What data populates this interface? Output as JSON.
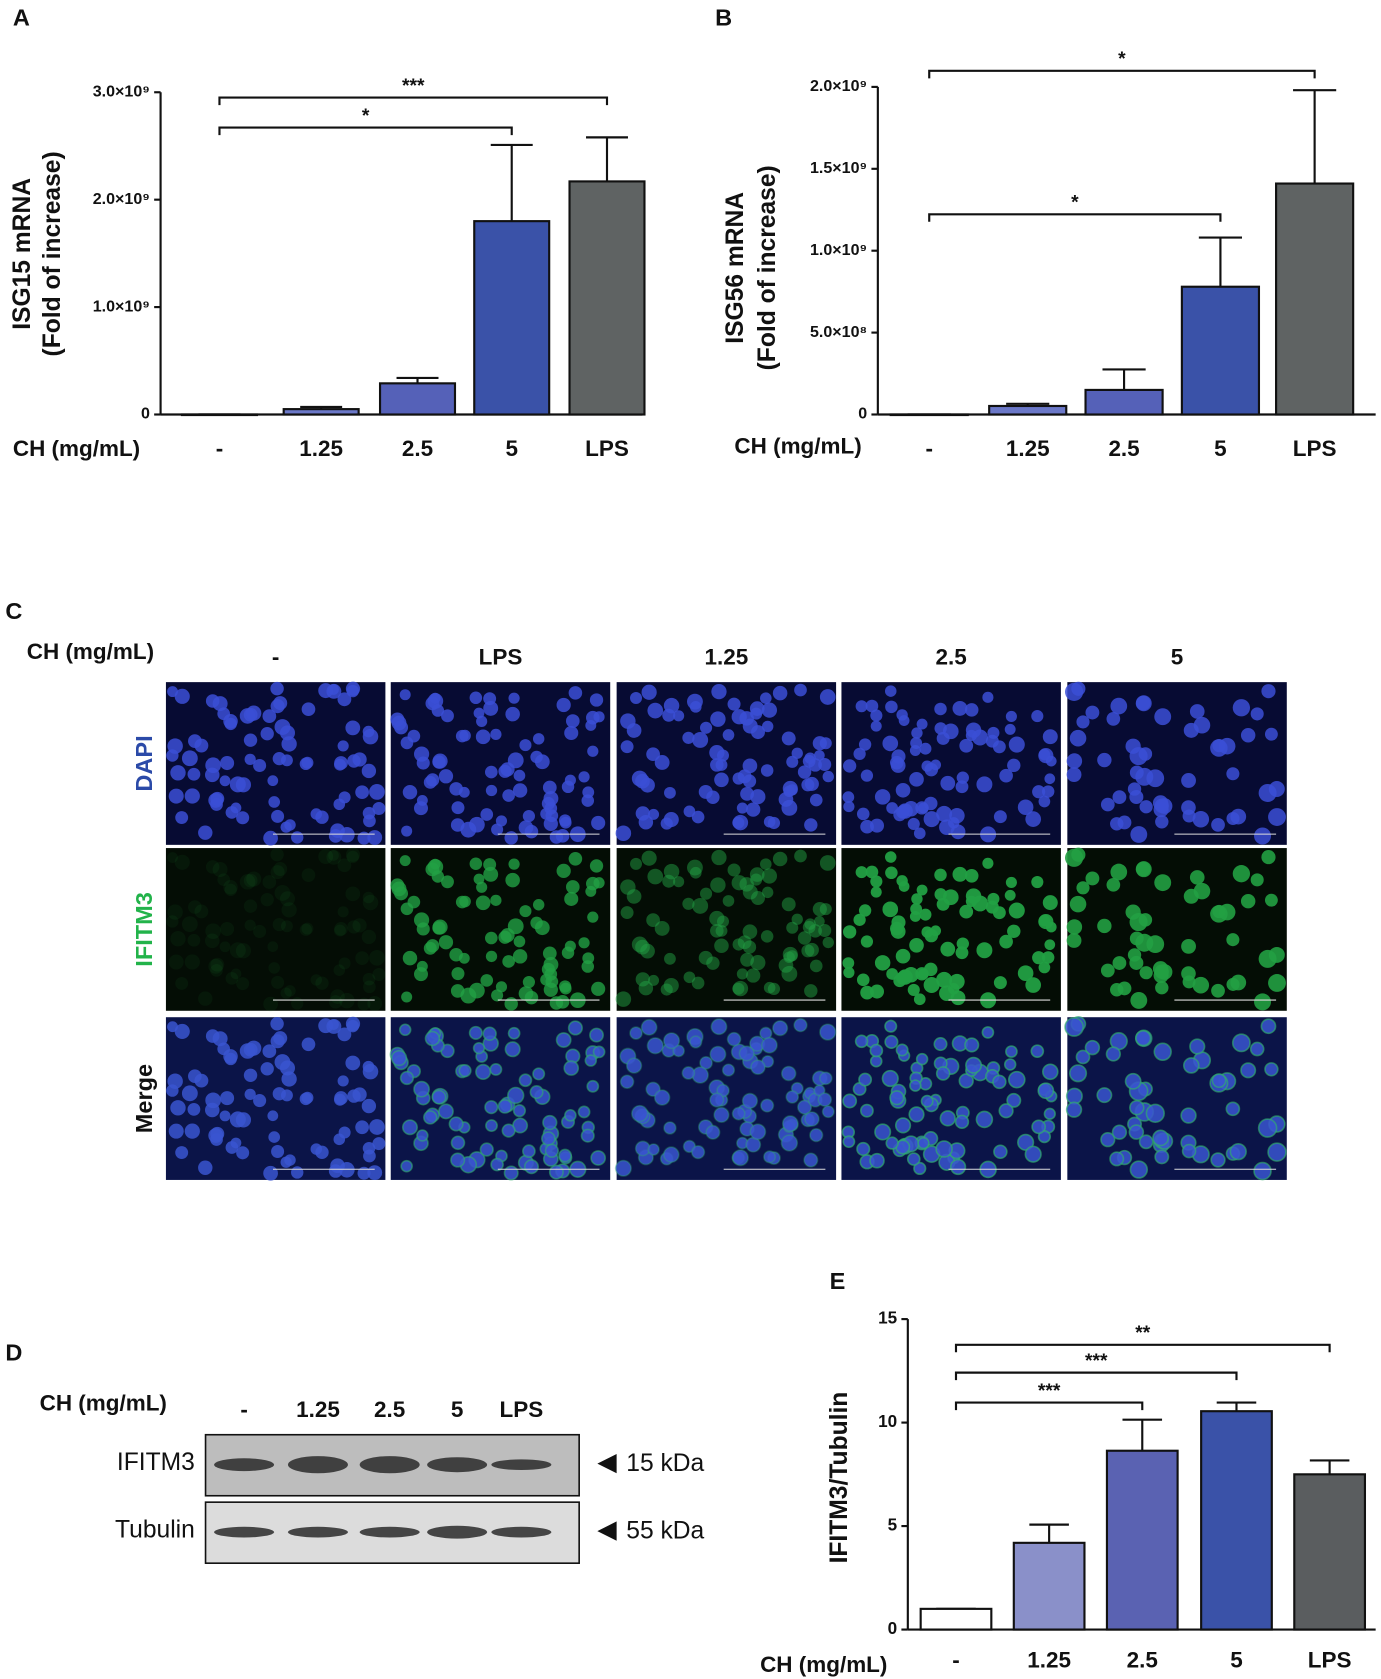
{
  "chart_data": [
    {
      "type": "bar",
      "panel": "A",
      "ylabel": [
        "ISG15 mRNA",
        "(Fold of increase)"
      ],
      "xlabel": "CH (mg/mL)",
      "categories": [
        "-",
        "1.25",
        "2.5",
        "5",
        "LPS"
      ],
      "values": [
        1,
        50000000,
        290000000,
        1800000000,
        2170000000
      ],
      "errors": [
        0,
        20000000,
        50000000,
        710000000,
        410000000
      ],
      "colors": [
        "#6b78c8",
        "#6b78c8",
        "#5561b8",
        "#3a52a8",
        "#5f6363"
      ],
      "ylim": [
        0,
        3000000000
      ],
      "yticks": [
        0,
        {
          "value": 1000000000,
          "label": "1.0×10⁹"
        },
        {
          "value": 2000000000,
          "label": "2.0×10⁹"
        },
        {
          "value": 3000000000,
          "label": "3.0×10⁹"
        }
      ],
      "annotations": [
        "***",
        "*"
      ]
    },
    {
      "type": "bar",
      "panel": "B",
      "ylabel": [
        "ISG56 mRNA",
        "(Fold of increase)"
      ],
      "xlabel": "CH (mg/mL)",
      "categories": [
        "-",
        "1.25",
        "2.5",
        "5",
        "LPS"
      ],
      "values": [
        1,
        52000000,
        150000000,
        780000000,
        1410000000
      ],
      "errors": [
        0,
        13000000,
        125000000,
        300000000,
        570000000
      ],
      "colors": [
        "#6b78c8",
        "#6b78c8",
        "#5561b8",
        "#3a52a8",
        "#5f6363"
      ],
      "ylim": [
        0,
        2000000000
      ],
      "yticks": [
        0,
        {
          "value": 500000000,
          "label": "5.0×10⁸"
        },
        {
          "value": 1000000000,
          "label": "1.0×10⁹"
        },
        {
          "value": 1500000000,
          "label": "1.5×10⁹"
        },
        {
          "value": 2000000000,
          "label": "2.0×10⁹"
        }
      ],
      "annotations": [
        "*",
        "*"
      ]
    },
    {
      "type": "bar",
      "panel": "E",
      "ylabel": [
        "IFITM3/Tubulin"
      ],
      "xlabel": "CH (mg/mL)",
      "categories": [
        "-",
        "1.25",
        "2.5",
        "5",
        "LPS"
      ],
      "values": [
        1,
        4.19,
        8.64,
        10.55,
        7.5
      ],
      "errors": [
        0,
        0.88,
        1.5,
        0.42,
        0.67
      ],
      "colors": [
        "#ffffff",
        "#8a90c9",
        "#5a62b2",
        "#3a52a8",
        "#5a5d5f"
      ],
      "ylim": [
        0,
        15
      ],
      "yticks": [
        0,
        5,
        10,
        15
      ],
      "annotations": [
        "***",
        "***",
        "**"
      ]
    }
  ],
  "microscopy": {
    "panel": "C",
    "xlabel": "CH (mg/mL)",
    "columns": [
      "-",
      "LPS",
      "1.25",
      "2.5",
      "5"
    ],
    "rows": [
      "DAPI",
      "IFITM3",
      "Merge"
    ]
  },
  "western_blot": {
    "panel": "D",
    "xlabel": "CH (mg/mL)",
    "lanes": [
      "-",
      "1.25",
      "2.5",
      "5",
      "LPS"
    ],
    "rows": [
      {
        "label": "IFITM3",
        "size": "15 kDa"
      },
      {
        "label": "Tubulin",
        "size": "55 kDa"
      }
    ]
  }
}
